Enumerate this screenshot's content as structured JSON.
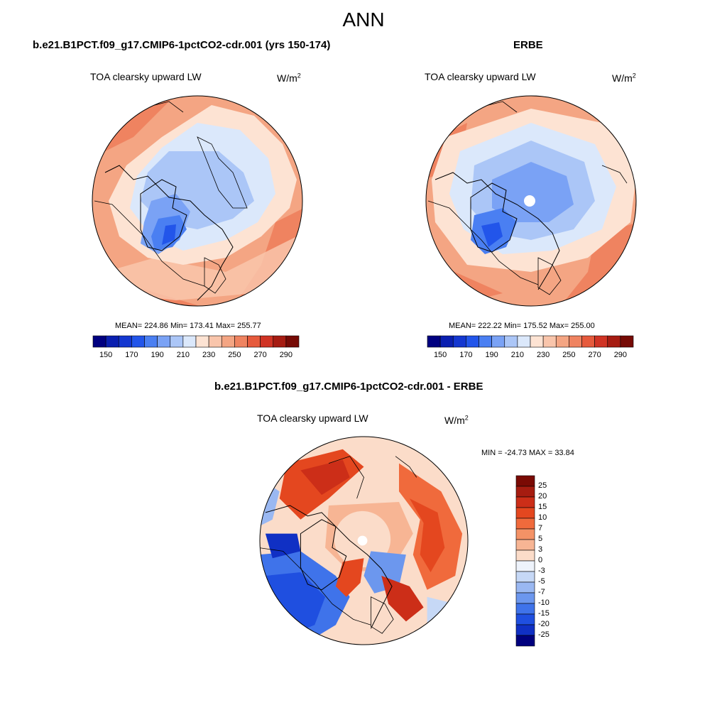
{
  "title": "ANN",
  "panels": [
    {
      "id": "model",
      "case_title": "b.e21.B1PCT.f09_g17.CMIP6-1pctCO2-cdr.001 (yrs 150-174)",
      "variable": "TOA clearsky upward LW",
      "units_base": "W/m",
      "units_exp": "2",
      "stats": "MEAN= 224.86  Min= 173.41  Max= 255.77",
      "colorbar": {
        "colors": [
          "#000080",
          "#0a1fb0",
          "#1437d0",
          "#2255ea",
          "#4a7ff2",
          "#7aa2f5",
          "#abc6f7",
          "#dbe8fb",
          "#fde3d3",
          "#f9c5ab",
          "#f4a583",
          "#ef8360",
          "#e65a3c",
          "#d03324",
          "#a61c12",
          "#760a05"
        ],
        "labels": [
          "150",
          "170",
          "190",
          "210",
          "230",
          "250",
          "270",
          "290"
        ]
      }
    },
    {
      "id": "obs",
      "case_title": "ERBE",
      "variable": "TOA clearsky upward LW",
      "units_base": "W/m",
      "units_exp": "2",
      "stats": "MEAN= 222.22  Min= 175.52  Max= 255.00",
      "colorbar": {
        "colors": [
          "#000080",
          "#0a1fb0",
          "#1437d0",
          "#2255ea",
          "#4a7ff2",
          "#7aa2f5",
          "#abc6f7",
          "#dbe8fb",
          "#fde3d3",
          "#f9c5ab",
          "#f4a583",
          "#ef8360",
          "#e65a3c",
          "#d03324",
          "#a61c12",
          "#760a05"
        ],
        "labels": [
          "150",
          "170",
          "190",
          "210",
          "230",
          "250",
          "270",
          "290"
        ]
      }
    },
    {
      "id": "diff",
      "case_title": "b.e21.B1PCT.f09_g17.CMIP6-1pctCO2-cdr.001 - ERBE",
      "variable": "TOA clearsky upward LW",
      "units_base": "W/m",
      "units_exp": "2",
      "stats": "MIN = -24.73 MAX =  33.84",
      "colorbar": {
        "colors": [
          "#7a0a04",
          "#a61c10",
          "#cc2e18",
          "#e4471f",
          "#f06a3c",
          "#f49266",
          "#f7b594",
          "#fbdcc9",
          "#eef3fb",
          "#c6d8f6",
          "#9ab8f2",
          "#6c97ee",
          "#3f73ea",
          "#1f4fe0",
          "#1030c4",
          "#00007e"
        ],
        "labels": [
          "25",
          "20",
          "15",
          "10",
          "7",
          "5",
          "3",
          "0",
          "-3",
          "-5",
          "-7",
          "-10",
          "-15",
          "-20",
          "-25"
        ]
      }
    }
  ]
}
